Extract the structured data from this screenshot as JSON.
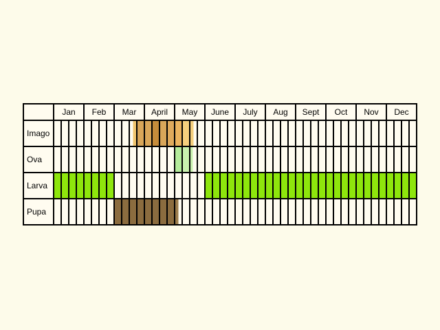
{
  "chart_data": {
    "type": "table",
    "columns": [
      "Jan",
      "Feb",
      "Mar",
      "April",
      "May",
      "June",
      "July",
      "Aug",
      "Sept",
      "Oct",
      "Nov",
      "Dec"
    ],
    "weeks_per_month": 4,
    "rows": [
      {
        "label": "Imago",
        "spans": [
          {
            "start": 10.5,
            "end": 11,
            "color": "#f0c46e"
          },
          {
            "start": 11,
            "end": 13,
            "color": "#d9a659"
          },
          {
            "start": 13,
            "end": 14,
            "color": "#c68c3b"
          },
          {
            "start": 14,
            "end": 15,
            "color": "#d9a659"
          },
          {
            "start": 15,
            "end": 16,
            "color": "#e0aa5c"
          },
          {
            "start": 16,
            "end": 17,
            "color": "#ecb45f"
          },
          {
            "start": 17,
            "end": 18.5,
            "color": "#f5cf7d"
          }
        ]
      },
      {
        "label": "Ova",
        "spans": [
          {
            "start": 16,
            "end": 17,
            "color": "#b5ec9a"
          },
          {
            "start": 17,
            "end": 18.4,
            "color": "#c9f1ae"
          }
        ]
      },
      {
        "label": "Larva",
        "spans": [
          {
            "start": 0,
            "end": 8,
            "color": "#8ee60c"
          },
          {
            "start": 20,
            "end": 48,
            "color": "#8ee60c"
          }
        ]
      },
      {
        "label": "Pupa",
        "spans": [
          {
            "start": 8,
            "end": 16,
            "color": "#8b6c3f"
          },
          {
            "start": 16,
            "end": 16.5,
            "color": "#9b7c4c"
          }
        ]
      }
    ]
  }
}
